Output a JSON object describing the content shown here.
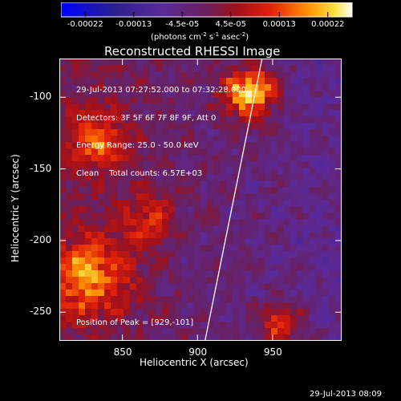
{
  "colorbar": {
    "tick_labels": [
      "-0.00022",
      "-0.00013",
      "-4.5e-05",
      "4.5e-05",
      "0.00013",
      "0.00022"
    ],
    "units_prefix": "(photons cm",
    "units_exp1": "-2",
    "units_mid": " s",
    "units_exp2": "-1",
    "units_mid2": " asec",
    "units_exp3": "-2",
    "units_suffix": ")"
  },
  "chart_data": {
    "type": "heatmap",
    "title": "Reconstructed RHESSI Image",
    "xlabel": "Heliocentric X (arcsec)",
    "ylabel": "Heliocentric Y (arcsec)",
    "xlim": [
      808,
      996
    ],
    "ylim": [
      -270,
      -73
    ],
    "xticks": [
      850,
      900,
      950
    ],
    "yticks": [
      -100,
      -150,
      -200,
      -250
    ],
    "color_range": [
      -0.00022,
      0.00022
    ],
    "peak": [
      929,
      -101
    ],
    "limb_line": [
      [
        905,
        -270
      ],
      [
        943,
        -73
      ]
    ],
    "bright_regions": [
      {
        "x": 935,
        "y": -97,
        "r": 12,
        "intensity": 0.00022
      },
      {
        "x": 828,
        "y": -225,
        "r": 18,
        "intensity": 0.00016
      },
      {
        "x": 835,
        "y": -130,
        "r": 14,
        "intensity": 0.00012
      },
      {
        "x": 955,
        "y": -258,
        "r": 10,
        "intensity": 0.00013
      },
      {
        "x": 868,
        "y": -185,
        "r": 12,
        "intensity": 0.0001
      }
    ]
  },
  "info": {
    "line1": "29-Jul-2013 07:27:52.000 to 07:32:28.000",
    "line2": "Detectors: 3F 5F 6F 7F 8F 9F, Att 0",
    "line3": "Energy Range: 25.0 - 50.0 keV",
    "line4": "Clean    Total counts: 6.57E+03"
  },
  "peak_text": "Position of Peak = [929,-101]",
  "timestamp": "29-Jul-2013 08:09"
}
